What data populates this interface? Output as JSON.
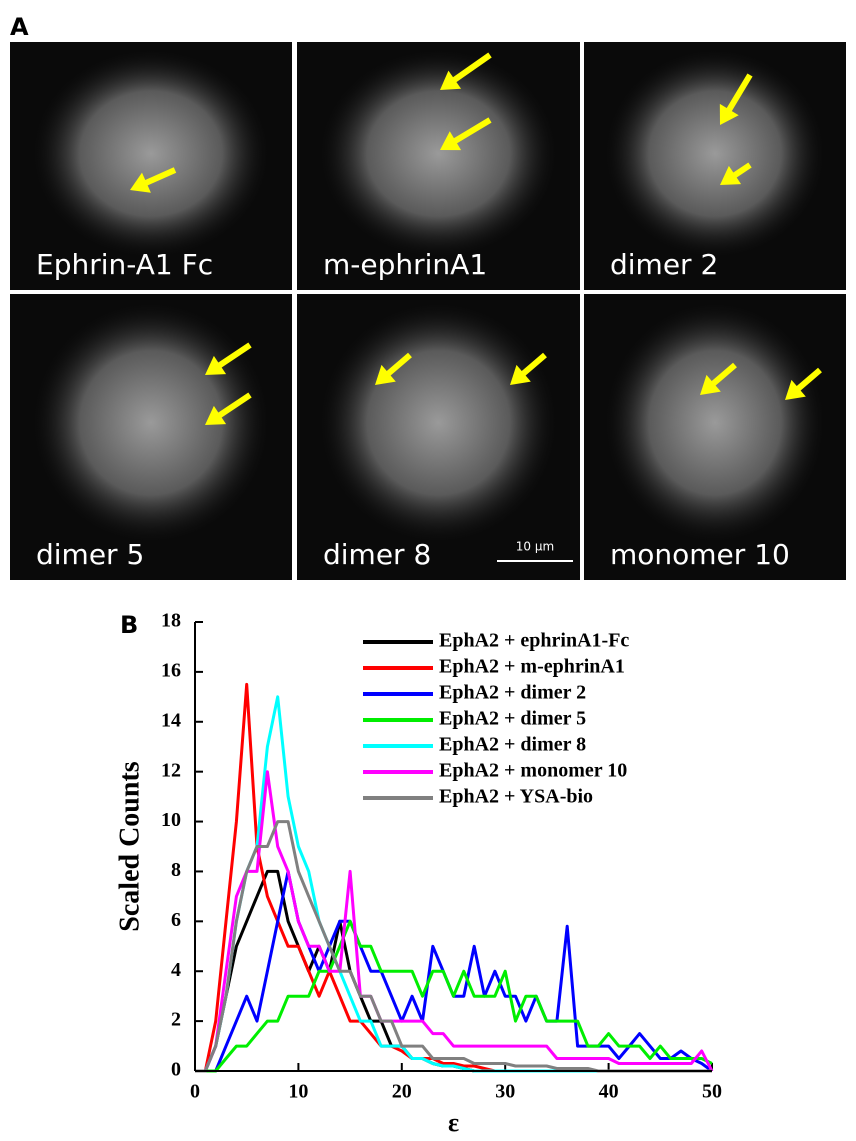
{
  "panel_a": {
    "label": "A",
    "panels": [
      {
        "label": "Ephrin-A1 Fc"
      },
      {
        "label": "m-ephrinA1"
      },
      {
        "label": "dimer 2"
      },
      {
        "label": "dimer 5"
      },
      {
        "label": "dimer 8"
      },
      {
        "label": "monomer 10"
      }
    ],
    "scale_bar": "10 µm"
  },
  "chart_data": {
    "type": "line",
    "panel_label": "B",
    "x_label": "ε",
    "y_label": "Scaled Counts",
    "xlim": [
      0,
      50
    ],
    "ylim": [
      0,
      18
    ],
    "xticks": [
      0,
      10,
      20,
      30,
      40,
      50
    ],
    "yticks": [
      0,
      2,
      4,
      6,
      8,
      10,
      12,
      14,
      16,
      18
    ],
    "legend": "upper right",
    "x": [
      0,
      1,
      2,
      3,
      4,
      5,
      6,
      7,
      8,
      9,
      10,
      11,
      12,
      13,
      14,
      15,
      16,
      17,
      18,
      19,
      20,
      21,
      22,
      23,
      24,
      25,
      26,
      27,
      28,
      29,
      30,
      31,
      32,
      33,
      34,
      35,
      36,
      37,
      38,
      39,
      40,
      41,
      42,
      43,
      44,
      45,
      46,
      47,
      48,
      49,
      50
    ],
    "series": [
      {
        "name": "EphA2 + ephrinA1-Fc",
        "color": "#000000",
        "values": [
          0,
          0,
          1,
          3,
          5,
          6,
          7,
          8,
          8,
          6,
          5,
          4,
          5,
          4,
          6,
          4,
          3,
          2,
          2,
          1,
          1,
          0.5,
          0.5,
          0.3,
          0.2,
          0.2,
          0.1,
          0,
          0,
          0,
          0,
          0,
          0,
          0,
          0,
          0,
          0,
          0,
          0,
          0,
          0,
          0,
          0,
          0,
          0,
          0,
          0,
          0,
          0,
          0,
          0
        ]
      },
      {
        "name": "EphA2 + m-ephrinA1",
        "color": "#ff0000",
        "values": [
          0,
          0,
          2,
          6,
          10,
          15.5,
          9,
          7,
          6,
          5,
          5,
          4,
          3,
          4,
          3,
          2,
          2,
          1.5,
          1,
          1,
          0.8,
          0.5,
          0.5,
          0.5,
          0.3,
          0.3,
          0.2,
          0.2,
          0.1,
          0,
          0,
          0,
          0,
          0,
          0,
          0,
          0,
          0,
          0,
          0,
          0,
          0,
          0,
          0,
          0,
          0,
          0,
          0,
          0,
          0,
          0
        ]
      },
      {
        "name": "EphA2 + dimer 2",
        "color": "#0000ff",
        "values": [
          0,
          0,
          0,
          1,
          2,
          3,
          2,
          4,
          6,
          8,
          6,
          5,
          4,
          5,
          6,
          6,
          5,
          4,
          4,
          3,
          2,
          3,
          2,
          5,
          4,
          3,
          3,
          5,
          3,
          4,
          3,
          3,
          2,
          3,
          2,
          2,
          5.8,
          1,
          1,
          1,
          1,
          0.5,
          1,
          1.5,
          1,
          0.5,
          0.5,
          0.8,
          0.5,
          0.3,
          0
        ]
      },
      {
        "name": "EphA2 + dimer 5",
        "color": "#00ee00",
        "values": [
          0,
          0,
          0,
          0.5,
          1,
          1,
          1.5,
          2,
          2,
          3,
          3,
          3,
          4,
          4,
          5,
          6,
          5,
          5,
          4,
          4,
          4,
          4,
          3,
          4,
          4,
          3,
          4,
          3,
          3,
          3,
          4,
          2,
          3,
          3,
          2,
          2,
          2,
          2,
          1,
          1,
          1.5,
          1,
          1,
          1,
          0.5,
          1,
          0.5,
          0.5,
          0.5,
          0.5,
          0.3
        ]
      },
      {
        "name": "EphA2 + dimer 8",
        "color": "#00ffff",
        "values": [
          0,
          0,
          1,
          3,
          6,
          8,
          9,
          13,
          15,
          11,
          9,
          8,
          6,
          5,
          4,
          3,
          2,
          2,
          1,
          1,
          1,
          0.5,
          0.5,
          0.3,
          0.2,
          0.2,
          0.1,
          0,
          0,
          0,
          0,
          0,
          0,
          0,
          0,
          0,
          0,
          0,
          0,
          0,
          0,
          0,
          0,
          0,
          0,
          0,
          0,
          0,
          0,
          0,
          0
        ]
      },
      {
        "name": "EphA2 + monomer 10",
        "color": "#ff00ff",
        "values": [
          0,
          0,
          1,
          4,
          7,
          8,
          8,
          12,
          9,
          8,
          6,
          5,
          5,
          4,
          4,
          8,
          3,
          3,
          2,
          2,
          2,
          2,
          2,
          1.5,
          1.5,
          1,
          1,
          1,
          1,
          1,
          1,
          1,
          1,
          1,
          1,
          0.5,
          0.5,
          0.5,
          0.5,
          0.5,
          0.5,
          0.3,
          0.3,
          0.3,
          0.3,
          0.3,
          0.3,
          0.3,
          0.3,
          0.8,
          0
        ]
      },
      {
        "name": "EphA2 + YSA-bio",
        "color": "#808080",
        "values": [
          0,
          0,
          1,
          3,
          6,
          8,
          9,
          9,
          10,
          10,
          8,
          7,
          6,
          5,
          4,
          4,
          3,
          3,
          2,
          2,
          1,
          1,
          1,
          0.5,
          0.5,
          0.5,
          0.5,
          0.3,
          0.3,
          0.3,
          0.3,
          0.2,
          0.2,
          0.2,
          0.2,
          0.1,
          0.1,
          0.1,
          0.1,
          0,
          0,
          0,
          0,
          0,
          0,
          0,
          0,
          0,
          0,
          0,
          0
        ]
      }
    ]
  }
}
